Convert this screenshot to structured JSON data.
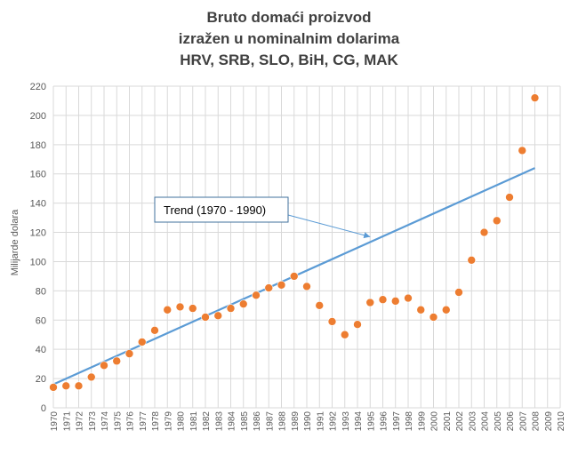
{
  "chart_data": {
    "type": "scatter",
    "title_lines": [
      "Bruto domaći proizvod",
      "izražen u nominalnim  dolarima",
      "HRV, SRB, SLO, BiH, CG, MAK"
    ],
    "xlabel": "",
    "ylabel": "Milijarde dolara",
    "xlim": [
      1970,
      2010
    ],
    "ylim": [
      0,
      220
    ],
    "x_ticks": [
      "1970",
      "1971",
      "1972",
      "1973",
      "1974",
      "1975",
      "1976",
      "1977",
      "1978",
      "1979",
      "1980",
      "1981",
      "1982",
      "1983",
      "1984",
      "1985",
      "1986",
      "1987",
      "1988",
      "1989",
      "1990",
      "1991",
      "1992",
      "1993",
      "1994",
      "1995",
      "1996",
      "1997",
      "1998",
      "1999",
      "2000",
      "2001",
      "2002",
      "2003",
      "2004",
      "2005",
      "2006",
      "2007",
      "2008",
      "2009",
      "2010"
    ],
    "y_ticks": [
      "0",
      "20",
      "40",
      "60",
      "80",
      "100",
      "120",
      "140",
      "160",
      "180",
      "200",
      "220"
    ],
    "grid": true,
    "series": [
      {
        "color": "#ed7d31",
        "x": [
          1970,
          1971,
          1972,
          1973,
          1974,
          1975,
          1976,
          1977,
          1978,
          1979,
          1980,
          1981,
          1982,
          1983,
          1984,
          1985,
          1986,
          1987,
          1988,
          1989,
          1990,
          1991,
          1992,
          1993,
          1994,
          1995,
          1996,
          1997,
          1998,
          1999,
          2000,
          2001,
          2002,
          2003,
          2004,
          2005,
          2006,
          2007,
          2008
        ],
        "y": [
          14,
          15,
          15,
          21,
          29,
          32,
          37,
          45,
          53,
          67,
          69,
          68,
          62,
          63,
          68,
          71,
          77,
          82,
          84,
          90,
          83,
          70,
          59,
          50,
          57,
          72,
          74,
          73,
          75,
          67,
          62,
          67,
          79,
          101,
          120,
          128,
          144,
          176,
          212
        ]
      }
    ],
    "trend": {
      "color": "#5b9bd5",
      "x": [
        1970,
        2008
      ],
      "y": [
        16,
        164
      ]
    },
    "annotation": {
      "text": "Trend (1970 - 1990)",
      "arrow_to": [
        1995,
        117
      ]
    }
  }
}
